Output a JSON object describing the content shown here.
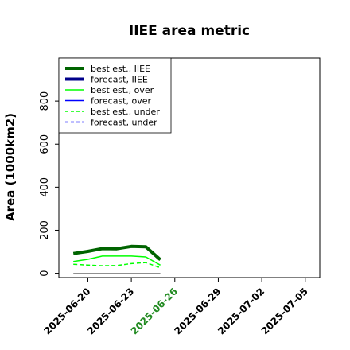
{
  "chart_data": {
    "type": "line",
    "title": "IIEE area metric",
    "xlabel": "",
    "ylabel": "Area (1000km2)",
    "x_ticks": [
      "2025-06-20",
      "2025-06-23",
      "2025-06-26",
      "2025-06-29",
      "2025-07-02",
      "2025-07-05"
    ],
    "highlight_tick": "2025-06-26",
    "highlight_color": "#228b22",
    "xlim": [
      "2025-06-18",
      "2025-07-06"
    ],
    "ylim": [
      -20,
      1000
    ],
    "y_ticks": [
      0,
      200,
      400,
      600,
      800
    ],
    "grid": false,
    "legend_position": "top-left",
    "series": [
      {
        "name": "best est., IIEE",
        "color": "#006400",
        "style": "solid",
        "width": 4,
        "x": [
          "2025-06-19",
          "2025-06-20",
          "2025-06-21",
          "2025-06-22",
          "2025-06-23",
          "2025-06-24",
          "2025-06-25"
        ],
        "y": [
          92,
          102,
          115,
          114,
          125,
          123,
          63
        ]
      },
      {
        "name": "forecast, IIEE",
        "color": "#00008b",
        "style": "solid",
        "width": 4,
        "x": [],
        "y": []
      },
      {
        "name": "best est., over",
        "color": "#00ff00",
        "style": "solid",
        "width": 1.5,
        "x": [
          "2025-06-19",
          "2025-06-20",
          "2025-06-21",
          "2025-06-22",
          "2025-06-23",
          "2025-06-24",
          "2025-06-25"
        ],
        "y": [
          55,
          65,
          80,
          80,
          80,
          76,
          38
        ]
      },
      {
        "name": "forecast, over",
        "color": "#0000ff",
        "style": "solid",
        "width": 1.5,
        "x": [],
        "y": []
      },
      {
        "name": "best est., under",
        "color": "#00ff00",
        "style": "dashed",
        "width": 1.5,
        "x": [
          "2025-06-19",
          "2025-06-20",
          "2025-06-21",
          "2025-06-22",
          "2025-06-23",
          "2025-06-24",
          "2025-06-25"
        ],
        "y": [
          42,
          38,
          35,
          36,
          45,
          50,
          26
        ]
      },
      {
        "name": "forecast, under",
        "color": "#0000ff",
        "style": "dashed",
        "width": 1.5,
        "x": [],
        "y": []
      },
      {
        "name": "",
        "color": "#808080",
        "style": "solid",
        "width": 1,
        "x": [
          "2025-06-19",
          "2025-06-25"
        ],
        "y": [
          0,
          0
        ]
      }
    ]
  }
}
